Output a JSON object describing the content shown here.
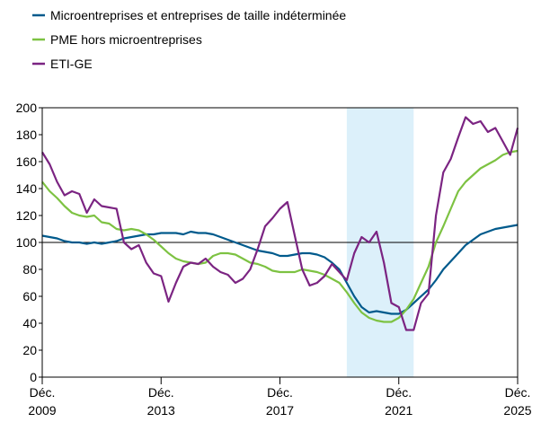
{
  "chart_data": {
    "type": "line",
    "x": [
      "2009-12",
      "2010-03",
      "2010-06",
      "2010-09",
      "2010-12",
      "2011-03",
      "2011-06",
      "2011-09",
      "2011-12",
      "2012-03",
      "2012-06",
      "2012-09",
      "2012-12",
      "2013-03",
      "2013-06",
      "2013-09",
      "2013-12",
      "2014-03",
      "2014-06",
      "2014-09",
      "2014-12",
      "2015-03",
      "2015-06",
      "2015-09",
      "2015-12",
      "2016-03",
      "2016-06",
      "2016-09",
      "2016-12",
      "2017-03",
      "2017-06",
      "2017-09",
      "2017-12",
      "2018-03",
      "2018-06",
      "2018-09",
      "2018-12",
      "2019-03",
      "2019-06",
      "2019-09",
      "2019-12",
      "2020-03",
      "2020-06",
      "2020-09",
      "2020-12",
      "2021-03",
      "2021-06",
      "2021-09",
      "2021-12",
      "2022-03",
      "2022-06",
      "2022-09",
      "2022-12",
      "2023-03",
      "2023-06",
      "2023-09",
      "2023-12",
      "2024-03",
      "2024-06",
      "2024-09",
      "2024-12",
      "2025-03",
      "2025-06",
      "2025-09",
      "2025-12"
    ],
    "series": [
      {
        "name": "Microentreprises et entreprises de taille indéterminée",
        "color": "#005a8c",
        "values": [
          105,
          104,
          103,
          101,
          100,
          100,
          99,
          100,
          99,
          100,
          101,
          103,
          104,
          105,
          106,
          106,
          107,
          107,
          107,
          106,
          108,
          107,
          107,
          106,
          104,
          102,
          100,
          98,
          96,
          94,
          93,
          92,
          90,
          90,
          91,
          92,
          92,
          91,
          89,
          85,
          80,
          70,
          60,
          52,
          48,
          49,
          48,
          47,
          47,
          50,
          55,
          60,
          65,
          72,
          80,
          86,
          92,
          98,
          102,
          106,
          108,
          110,
          111,
          112,
          113
        ]
      },
      {
        "name": "PME hors microentreprises",
        "color": "#7dc242",
        "values": [
          145,
          138,
          133,
          127,
          122,
          120,
          119,
          120,
          115,
          114,
          110,
          109,
          110,
          109,
          106,
          102,
          97,
          92,
          88,
          86,
          85,
          84,
          85,
          90,
          92,
          92,
          91,
          88,
          85,
          84,
          82,
          79,
          78,
          78,
          78,
          80,
          79,
          78,
          76,
          73,
          70,
          63,
          55,
          48,
          44,
          42,
          41,
          41,
          44,
          50,
          58,
          70,
          82,
          100,
          112,
          125,
          138,
          145,
          150,
          155,
          158,
          161,
          165,
          167,
          168
        ]
      },
      {
        "name": "ETI-GE",
        "color": "#7b2482",
        "values": [
          167,
          158,
          145,
          135,
          138,
          136,
          122,
          132,
          127,
          126,
          125,
          100,
          95,
          98,
          85,
          77,
          75,
          56,
          70,
          82,
          85,
          84,
          88,
          82,
          78,
          76,
          70,
          73,
          80,
          95,
          112,
          118,
          125,
          130,
          105,
          80,
          68,
          70,
          75,
          84,
          78,
          72,
          92,
          104,
          100,
          108,
          85,
          55,
          52,
          35,
          35,
          55,
          62,
          120,
          152,
          162,
          178,
          193,
          188,
          190,
          182,
          185,
          175,
          165,
          185
        ]
      }
    ],
    "xlim": [
      "2009-12",
      "2025-12"
    ],
    "xticks": [
      {
        "value": "2009-12",
        "label": "Déc. 2009"
      },
      {
        "value": "2013-12",
        "label": "Déc. 2013"
      },
      {
        "value": "2017-12",
        "label": "Déc. 2017"
      },
      {
        "value": "2021-12",
        "label": "Déc. 2021"
      },
      {
        "value": "2025-12",
        "label": "Déc. 2025"
      }
    ],
    "ylim": [
      0,
      200
    ],
    "yticks": [
      0,
      20,
      40,
      60,
      80,
      100,
      120,
      140,
      160,
      180,
      200
    ],
    "reference_line": 100,
    "shaded_period": [
      "2020-03",
      "2022-06"
    ],
    "shade_color": "#dcf0fa",
    "legend": "top-left"
  }
}
